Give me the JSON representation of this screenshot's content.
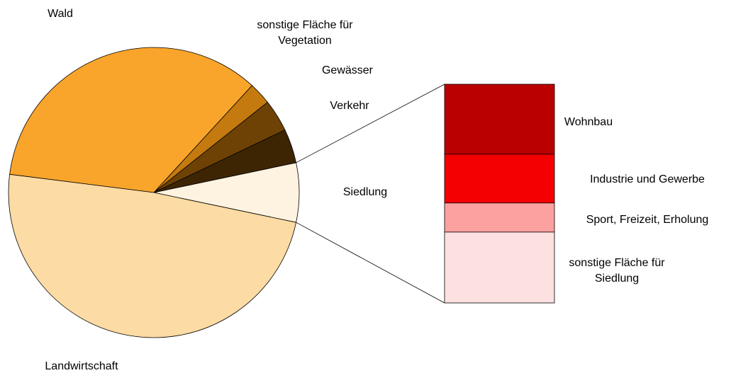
{
  "chart_data": {
    "type": "bar-of-pie",
    "categories": [
      "Landwirtschaft",
      "Wald",
      "sonstige Fläche für\nVegetation",
      "Gewässer",
      "Verkehr",
      "Siedlung"
    ],
    "values": [
      48.7,
      34.8,
      2.5,
      3.6,
      3.8,
      6.6
    ],
    "colors": [
      "#FDDBA4",
      "#F9A52B",
      "#C47A0E",
      "#6E4205",
      "#3D2504",
      "#FEF3E0"
    ],
    "bar": {
      "categories": [
        "Wohnbau",
        "Industrie und Gewerbe",
        "Sport, Freizeit, Erholung",
        "sonstige Fläche für\nSiedlung"
      ],
      "values": [
        32,
        22.3,
        13.3,
        32.4
      ],
      "colors": [
        "#BB0000",
        "#F40000",
        "#FCA0A0",
        "#FDE0E0"
      ]
    }
  }
}
